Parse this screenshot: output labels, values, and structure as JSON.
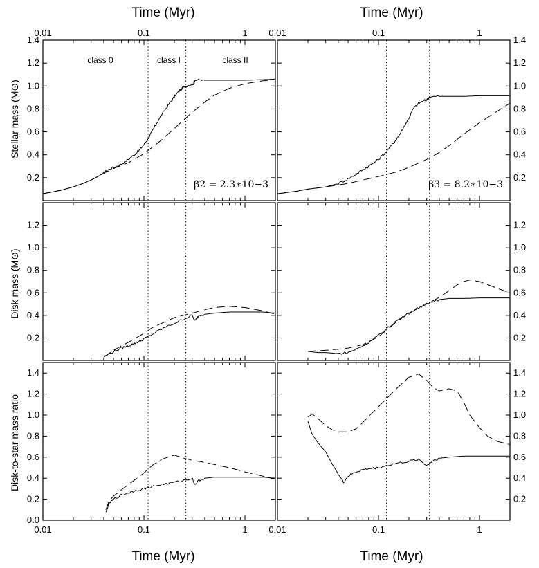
{
  "chart_data": [
    {
      "panel": "top-left",
      "type": "line",
      "ylabel": "Stellar mass (M⊙)",
      "top_xlabel": "Time (Myr)",
      "xscale": "log",
      "xlim": [
        0.01,
        2.0
      ],
      "ylim": [
        0.0,
        1.4
      ],
      "yticks": [
        "0.2",
        "0.4",
        "0.6",
        "0.8",
        "1.0",
        "1.2",
        "1.4"
      ],
      "xticks": [
        "0.01",
        "0.1",
        "1"
      ],
      "class_boundaries_myr": [
        0.11,
        0.26
      ],
      "class_labels": [
        "class 0",
        "class I",
        "class II"
      ],
      "annotation": "β2 = 2.3∗10−3",
      "series": [
        {
          "name": "solid",
          "style": "solid",
          "x": [
            0.01,
            0.015,
            0.02,
            0.025,
            0.03,
            0.035,
            0.04,
            0.043,
            0.05,
            0.06,
            0.07,
            0.08,
            0.09,
            0.1,
            0.11,
            0.12,
            0.13,
            0.15,
            0.17,
            0.19,
            0.21,
            0.23,
            0.25,
            0.28,
            0.31,
            0.32,
            0.4,
            0.5,
            0.7,
            1.0,
            1.5,
            2.0
          ],
          "y": [
            0.06,
            0.09,
            0.12,
            0.15,
            0.18,
            0.21,
            0.24,
            0.265,
            0.29,
            0.32,
            0.36,
            0.4,
            0.44,
            0.49,
            0.54,
            0.6,
            0.66,
            0.75,
            0.82,
            0.88,
            0.93,
            0.97,
            0.99,
            1.01,
            1.02,
            1.05,
            1.05,
            1.05,
            1.05,
            1.05,
            1.055,
            1.06
          ]
        },
        {
          "name": "dashed",
          "style": "dashed",
          "x": [
            0.01,
            0.015,
            0.02,
            0.025,
            0.03,
            0.035,
            0.04,
            0.05,
            0.07,
            0.1,
            0.15,
            0.2,
            0.3,
            0.4,
            0.5,
            0.7,
            1.0,
            1.5,
            2.0
          ],
          "y": [
            0.06,
            0.09,
            0.12,
            0.15,
            0.18,
            0.21,
            0.24,
            0.28,
            0.33,
            0.41,
            0.53,
            0.63,
            0.77,
            0.86,
            0.92,
            0.98,
            1.02,
            1.045,
            1.055
          ]
        }
      ]
    },
    {
      "panel": "top-right",
      "type": "line",
      "top_xlabel": "Time (Myr)",
      "xscale": "log",
      "xlim": [
        0.01,
        2.0
      ],
      "ylim": [
        0.0,
        1.4
      ],
      "yticks": [
        "0.2",
        "0.4",
        "0.6",
        "0.8",
        "1.0",
        "1.2",
        "1.4"
      ],
      "xticks": [
        "0.01",
        "0.1",
        "1"
      ],
      "class_boundaries_myr": [
        0.12,
        0.32
      ],
      "annotation": "β3 = 8.2∗10−3",
      "series": [
        {
          "name": "solid",
          "style": "solid",
          "x": [
            0.01,
            0.015,
            0.02,
            0.03,
            0.04,
            0.05,
            0.06,
            0.07,
            0.08,
            0.1,
            0.12,
            0.14,
            0.16,
            0.18,
            0.2,
            0.22,
            0.25,
            0.28,
            0.3,
            0.32,
            0.4,
            0.5,
            0.7,
            1.0,
            1.5,
            2.0
          ],
          "y": [
            0.06,
            0.08,
            0.1,
            0.12,
            0.15,
            0.19,
            0.23,
            0.27,
            0.3,
            0.36,
            0.43,
            0.5,
            0.57,
            0.65,
            0.72,
            0.8,
            0.85,
            0.87,
            0.88,
            0.905,
            0.91,
            0.91,
            0.91,
            0.915,
            0.915,
            0.915
          ]
        },
        {
          "name": "dashed",
          "style": "dashed",
          "x": [
            0.01,
            0.015,
            0.02,
            0.03,
            0.05,
            0.07,
            0.1,
            0.15,
            0.2,
            0.3,
            0.4,
            0.5,
            0.7,
            1.0,
            1.5,
            2.0
          ],
          "y": [
            0.06,
            0.08,
            0.1,
            0.12,
            0.15,
            0.18,
            0.21,
            0.25,
            0.29,
            0.36,
            0.42,
            0.48,
            0.58,
            0.68,
            0.78,
            0.85
          ]
        }
      ]
    },
    {
      "panel": "middle-left",
      "type": "line",
      "ylabel": "Disk mass (M⊙)",
      "xscale": "log",
      "xlim": [
        0.01,
        2.0
      ],
      "ylim": [
        0.0,
        1.4
      ],
      "yticks": [
        "0.2",
        "0.4",
        "0.6",
        "0.8",
        "1.0",
        "1.2"
      ],
      "class_boundaries_myr": [
        0.11,
        0.26
      ],
      "series": [
        {
          "name": "solid",
          "style": "solid",
          "x": [
            0.04,
            0.05,
            0.06,
            0.07,
            0.08,
            0.09,
            0.1,
            0.12,
            0.15,
            0.2,
            0.25,
            0.3,
            0.32,
            0.35,
            0.4,
            0.5,
            0.7,
            1.0,
            1.5,
            2.0
          ],
          "y": [
            0.03,
            0.08,
            0.11,
            0.13,
            0.15,
            0.17,
            0.19,
            0.23,
            0.28,
            0.33,
            0.37,
            0.4,
            0.35,
            0.4,
            0.41,
            0.42,
            0.43,
            0.43,
            0.43,
            0.42
          ]
        },
        {
          "name": "dashed",
          "style": "dashed",
          "x": [
            0.04,
            0.05,
            0.06,
            0.07,
            0.08,
            0.1,
            0.12,
            0.15,
            0.2,
            0.3,
            0.4,
            0.5,
            0.7,
            1.0,
            1.5,
            2.0
          ],
          "y": [
            0.03,
            0.09,
            0.13,
            0.16,
            0.19,
            0.24,
            0.29,
            0.33,
            0.38,
            0.42,
            0.45,
            0.47,
            0.48,
            0.47,
            0.44,
            0.41
          ]
        }
      ]
    },
    {
      "panel": "middle-right",
      "type": "line",
      "xscale": "log",
      "xlim": [
        0.01,
        2.0
      ],
      "ylim": [
        0.0,
        1.4
      ],
      "yticks": [
        "0.2",
        "0.4",
        "0.6",
        "0.8",
        "1.0",
        "1.2"
      ],
      "class_boundaries_myr": [
        0.12,
        0.32
      ],
      "series": [
        {
          "name": "solid",
          "style": "solid",
          "x": [
            0.02,
            0.025,
            0.03,
            0.04,
            0.05,
            0.06,
            0.07,
            0.08,
            0.1,
            0.12,
            0.15,
            0.2,
            0.25,
            0.3,
            0.35,
            0.4,
            0.5,
            0.7,
            1.0,
            1.5,
            2.0
          ],
          "y": [
            0.08,
            0.07,
            0.07,
            0.06,
            0.07,
            0.1,
            0.13,
            0.16,
            0.22,
            0.28,
            0.35,
            0.42,
            0.47,
            0.5,
            0.53,
            0.54,
            0.55,
            0.55,
            0.555,
            0.555,
            0.555
          ]
        },
        {
          "name": "dashed",
          "style": "dashed",
          "x": [
            0.02,
            0.03,
            0.04,
            0.05,
            0.07,
            0.1,
            0.12,
            0.15,
            0.2,
            0.3,
            0.4,
            0.5,
            0.6,
            0.7,
            0.8,
            1.0,
            1.5,
            2.0
          ],
          "y": [
            0.08,
            0.09,
            0.1,
            0.11,
            0.14,
            0.21,
            0.27,
            0.34,
            0.42,
            0.5,
            0.56,
            0.62,
            0.67,
            0.7,
            0.715,
            0.7,
            0.64,
            0.6
          ]
        }
      ]
    },
    {
      "panel": "bottom-left",
      "type": "line",
      "ylabel": "Disk-to-star mass ratio",
      "bottom_xlabel": "Time (Myr)",
      "xscale": "log",
      "xlim": [
        0.01,
        2.0
      ],
      "ylim": [
        0.0,
        1.5
      ],
      "yticks": [
        "0.0",
        "0.2",
        "0.4",
        "0.6",
        "0.8",
        "1.0",
        "1.2",
        "1.4"
      ],
      "xticks": [
        "0.01",
        "0.1",
        "1"
      ],
      "class_boundaries_myr": [
        0.11,
        0.26
      ],
      "series": [
        {
          "name": "solid",
          "style": "solid",
          "x": [
            0.042,
            0.045,
            0.05,
            0.06,
            0.07,
            0.08,
            0.1,
            0.12,
            0.15,
            0.2,
            0.25,
            0.3,
            0.32,
            0.35,
            0.4,
            0.5,
            0.7,
            1.0,
            1.5,
            2.0
          ],
          "y": [
            0.07,
            0.16,
            0.2,
            0.24,
            0.26,
            0.28,
            0.3,
            0.32,
            0.34,
            0.36,
            0.38,
            0.4,
            0.34,
            0.38,
            0.4,
            0.41,
            0.41,
            0.41,
            0.41,
            0.4
          ]
        },
        {
          "name": "dashed",
          "style": "dashed",
          "x": [
            0.042,
            0.045,
            0.05,
            0.06,
            0.07,
            0.08,
            0.1,
            0.12,
            0.15,
            0.2,
            0.25,
            0.3,
            0.4,
            0.5,
            0.7,
            1.0,
            1.5,
            2.0
          ],
          "y": [
            0.1,
            0.18,
            0.23,
            0.29,
            0.34,
            0.38,
            0.45,
            0.52,
            0.58,
            0.62,
            0.59,
            0.57,
            0.55,
            0.53,
            0.5,
            0.46,
            0.42,
            0.39
          ]
        }
      ]
    },
    {
      "panel": "bottom-right",
      "type": "line",
      "bottom_xlabel": "Time (Myr)",
      "xscale": "log",
      "xlim": [
        0.01,
        2.0
      ],
      "ylim": [
        0.0,
        1.5
      ],
      "yticks": [
        "0.2",
        "0.4",
        "0.6",
        "0.8",
        "1.0",
        "1.2",
        "1.4"
      ],
      "xticks": [
        "0.01",
        "0.1",
        "1"
      ],
      "class_boundaries_myr": [
        0.12,
        0.32
      ],
      "series": [
        {
          "name": "solid",
          "style": "solid",
          "x": [
            0.02,
            0.022,
            0.025,
            0.03,
            0.035,
            0.04,
            0.045,
            0.05,
            0.06,
            0.07,
            0.08,
            0.1,
            0.12,
            0.15,
            0.2,
            0.25,
            0.3,
            0.35,
            0.4,
            0.5,
            0.7,
            1.0,
            1.5,
            2.0
          ],
          "y": [
            0.94,
            0.82,
            0.74,
            0.65,
            0.53,
            0.44,
            0.36,
            0.42,
            0.46,
            0.48,
            0.49,
            0.5,
            0.52,
            0.54,
            0.56,
            0.58,
            0.52,
            0.57,
            0.59,
            0.6,
            0.61,
            0.61,
            0.61,
            0.61
          ]
        },
        {
          "name": "dashed",
          "style": "dashed",
          "x": [
            0.02,
            0.022,
            0.025,
            0.03,
            0.035,
            0.04,
            0.05,
            0.06,
            0.07,
            0.1,
            0.15,
            0.2,
            0.25,
            0.3,
            0.35,
            0.4,
            0.5,
            0.6,
            0.7,
            0.8,
            1.0,
            1.2,
            1.5,
            2.0
          ],
          "y": [
            0.98,
            1.01,
            0.97,
            0.9,
            0.86,
            0.84,
            0.84,
            0.87,
            0.93,
            1.08,
            1.25,
            1.36,
            1.39,
            1.33,
            1.26,
            1.23,
            1.25,
            1.23,
            1.12,
            1.0,
            0.88,
            0.8,
            0.75,
            0.72
          ]
        }
      ]
    }
  ]
}
